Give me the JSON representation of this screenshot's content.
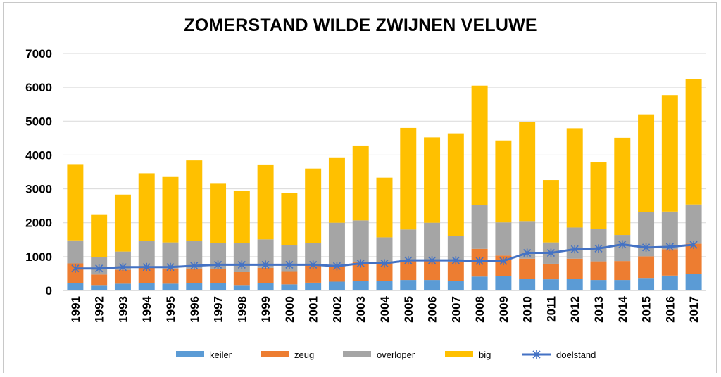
{
  "chart_data": {
    "type": "bar",
    "stacked": true,
    "title": "ZOMERSTAND WILDE ZWIJNEN VELUWE",
    "xlabel": "",
    "ylabel": "",
    "ylim": [
      0,
      7000
    ],
    "yticks": [
      "0",
      "1000",
      "2000",
      "3000",
      "4000",
      "5000",
      "6000",
      "7000"
    ],
    "grid": true,
    "legend_position": "bottom",
    "categories": [
      "1991",
      "1992",
      "1993",
      "1994",
      "1995",
      "1996",
      "1997",
      "1998",
      "1999",
      "2000",
      "2001",
      "2002",
      "2003",
      "2004",
      "2005",
      "2006",
      "2007",
      "2008",
      "2009",
      "2010",
      "2011",
      "2012",
      "2013",
      "2014",
      "2015",
      "2016",
      "2017"
    ],
    "series": [
      {
        "name": "keiler",
        "kind": "bar",
        "color": "#5b9bd5",
        "values": [
          220,
          160,
          200,
          210,
          200,
          220,
          210,
          160,
          210,
          180,
          230,
          260,
          270,
          270,
          310,
          310,
          290,
          410,
          430,
          350,
          330,
          340,
          310,
          310,
          370,
          440,
          480
        ]
      },
      {
        "name": "zeug",
        "kind": "bar",
        "color": "#ed7d31",
        "values": [
          580,
          310,
          410,
          500,
          450,
          430,
          430,
          380,
          460,
          370,
          550,
          480,
          560,
          530,
          580,
          590,
          560,
          820,
          600,
          590,
          460,
          600,
          550,
          560,
          640,
          780,
          900
        ]
      },
      {
        "name": "overloper",
        "kind": "bar",
        "color": "#a5a5a5",
        "values": [
          680,
          520,
          540,
          750,
          770,
          820,
          760,
          860,
          840,
          780,
          630,
          1260,
          1240,
          770,
          910,
          1100,
          760,
          1290,
          980,
          1110,
          630,
          920,
          950,
          770,
          1310,
          1110,
          1160
        ]
      },
      {
        "name": "big",
        "kind": "bar",
        "color": "#ffc000",
        "values": [
          2250,
          1260,
          1680,
          2000,
          1950,
          2370,
          1770,
          1550,
          2210,
          1540,
          2190,
          1930,
          2210,
          1760,
          3000,
          2520,
          3030,
          3530,
          2420,
          2920,
          1840,
          2930,
          1970,
          2870,
          2880,
          3440,
          3710
        ]
      },
      {
        "name": "doelstand",
        "kind": "line",
        "color": "#4472c4",
        "values": [
          650,
          650,
          690,
          690,
          690,
          730,
          760,
          760,
          760,
          760,
          760,
          720,
          800,
          800,
          890,
          890,
          890,
          870,
          870,
          1110,
          1110,
          1220,
          1240,
          1360,
          1270,
          1290,
          1350
        ]
      }
    ]
  }
}
